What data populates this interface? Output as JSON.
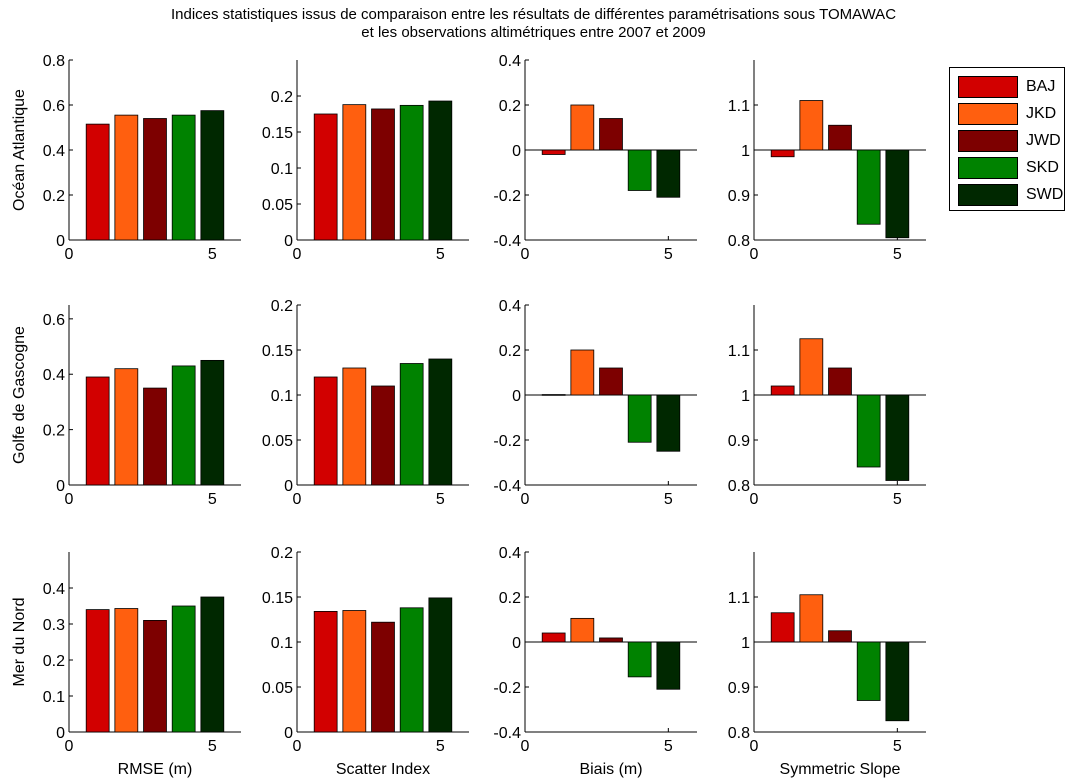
{
  "figure": {
    "title_line1": "Indices statistiques issus de comparaison entre les résultats de différentes paramétrisations sous TOMAWAC",
    "title_line2": "et les observations altimétriques entre 2007 et 2009"
  },
  "legend": {
    "items": [
      {
        "label": "BAJ",
        "color": "#d20000"
      },
      {
        "label": "JKD",
        "color": "#ff5f0f"
      },
      {
        "label": "JWD",
        "color": "#7d0000"
      },
      {
        "label": "SKD",
        "color": "#008200"
      },
      {
        "label": "SWD",
        "color": "#002800"
      }
    ]
  },
  "chart_data": [
    {
      "type": "bar",
      "row": "Océan Atlantique",
      "column": "RMSE (m)",
      "x": [
        1,
        2,
        3,
        4,
        5
      ],
      "values": [
        0.515,
        0.555,
        0.54,
        0.555,
        0.575
      ],
      "xlim": [
        0,
        6
      ],
      "ylim": [
        0,
        0.8
      ],
      "yticks": [
        0,
        0.2,
        0.4,
        0.6,
        0.8
      ],
      "ytick_labels": [
        "0",
        "0.2",
        "0.4",
        "0.6",
        "0.8"
      ],
      "xticks": [
        0,
        5
      ],
      "baseline": 0,
      "ylabel": "Océan Atlantique",
      "xlabel": ""
    },
    {
      "type": "bar",
      "row": "Océan Atlantique",
      "column": "Scatter Index",
      "x": [
        1,
        2,
        3,
        4,
        5
      ],
      "values": [
        0.175,
        0.188,
        0.182,
        0.187,
        0.193
      ],
      "xlim": [
        0,
        6
      ],
      "ylim": [
        0,
        0.25
      ],
      "yticks": [
        0,
        0.05,
        0.1,
        0.15,
        0.2
      ],
      "ytick_labels": [
        "0",
        "0.05",
        "0.1",
        "0.15",
        "0.2"
      ],
      "xticks": [
        0,
        5
      ],
      "baseline": 0,
      "ylabel": "",
      "xlabel": ""
    },
    {
      "type": "bar",
      "row": "Océan Atlantique",
      "column": "Biais (m)",
      "x": [
        1,
        2,
        3,
        4,
        5
      ],
      "values": [
        -0.02,
        0.2,
        0.14,
        -0.18,
        -0.21
      ],
      "xlim": [
        0,
        6
      ],
      "ylim": [
        -0.4,
        0.4
      ],
      "yticks": [
        -0.4,
        -0.2,
        0,
        0.2,
        0.4
      ],
      "ytick_labels": [
        "-0.4",
        "-0.2",
        "0",
        "0.2",
        "0.4"
      ],
      "xticks": [
        0,
        5
      ],
      "baseline": 0,
      "ylabel": "",
      "xlabel": ""
    },
    {
      "type": "bar",
      "row": "Océan Atlantique",
      "column": "Symmetric Slope",
      "x": [
        1,
        2,
        3,
        4,
        5
      ],
      "values": [
        0.985,
        1.11,
        1.055,
        0.835,
        0.805
      ],
      "xlim": [
        0,
        6
      ],
      "ylim": [
        0.8,
        1.2
      ],
      "yticks": [
        0.8,
        0.9,
        1,
        1.1
      ],
      "ytick_labels": [
        "0.8",
        "0.9",
        "1",
        "1.1"
      ],
      "xticks": [
        0,
        5
      ],
      "baseline": 1,
      "ylabel": "",
      "xlabel": ""
    },
    {
      "type": "bar",
      "row": "Golfe de Gascogne",
      "column": "RMSE (m)",
      "x": [
        1,
        2,
        3,
        4,
        5
      ],
      "values": [
        0.39,
        0.42,
        0.35,
        0.43,
        0.45
      ],
      "xlim": [
        0,
        6
      ],
      "ylim": [
        0,
        0.65
      ],
      "yticks": [
        0,
        0.2,
        0.4,
        0.6
      ],
      "ytick_labels": [
        "0",
        "0.2",
        "0.4",
        "0.6"
      ],
      "xticks": [
        0,
        5
      ],
      "baseline": 0,
      "ylabel": "Golfe de Gascogne",
      "xlabel": ""
    },
    {
      "type": "bar",
      "row": "Golfe de Gascogne",
      "column": "Scatter Index",
      "x": [
        1,
        2,
        3,
        4,
        5
      ],
      "values": [
        0.12,
        0.13,
        0.11,
        0.135,
        0.14
      ],
      "xlim": [
        0,
        6
      ],
      "ylim": [
        0,
        0.2
      ],
      "yticks": [
        0,
        0.05,
        0.1,
        0.15,
        0.2
      ],
      "ytick_labels": [
        "0",
        "0.05",
        "0.1",
        "0.15",
        "0.2"
      ],
      "xticks": [
        0,
        5
      ],
      "baseline": 0,
      "ylabel": "",
      "xlabel": ""
    },
    {
      "type": "bar",
      "row": "Golfe de Gascogne",
      "column": "Biais (m)",
      "x": [
        1,
        2,
        3,
        4,
        5
      ],
      "values": [
        0.002,
        0.2,
        0.12,
        -0.21,
        -0.25
      ],
      "xlim": [
        0,
        6
      ],
      "ylim": [
        -0.4,
        0.4
      ],
      "yticks": [
        -0.4,
        -0.2,
        0,
        0.2,
        0.4
      ],
      "ytick_labels": [
        "-0.4",
        "-0.2",
        "0",
        "0.2",
        "0.4"
      ],
      "xticks": [
        0,
        5
      ],
      "baseline": 0,
      "ylabel": "",
      "xlabel": ""
    },
    {
      "type": "bar",
      "row": "Golfe de Gascogne",
      "column": "Symmetric Slope",
      "x": [
        1,
        2,
        3,
        4,
        5
      ],
      "values": [
        1.02,
        1.125,
        1.06,
        0.84,
        0.81
      ],
      "xlim": [
        0,
        6
      ],
      "ylim": [
        0.8,
        1.2
      ],
      "yticks": [
        0.8,
        0.9,
        1,
        1.1
      ],
      "ytick_labels": [
        "0.8",
        "0.9",
        "1",
        "1.1"
      ],
      "xticks": [
        0,
        5
      ],
      "baseline": 1,
      "ylabel": "",
      "xlabel": ""
    },
    {
      "type": "bar",
      "row": "Mer du Nord",
      "column": "RMSE (m)",
      "x": [
        1,
        2,
        3,
        4,
        5
      ],
      "values": [
        0.34,
        0.343,
        0.31,
        0.35,
        0.375
      ],
      "xlim": [
        0,
        6
      ],
      "ylim": [
        0,
        0.5
      ],
      "yticks": [
        0,
        0.1,
        0.2,
        0.3,
        0.4
      ],
      "ytick_labels": [
        "0",
        "0.1",
        "0.2",
        "0.3",
        "0.4"
      ],
      "xticks": [
        0,
        5
      ],
      "baseline": 0,
      "ylabel": "Mer du Nord",
      "xlabel": "RMSE (m)"
    },
    {
      "type": "bar",
      "row": "Mer du Nord",
      "column": "Scatter Index",
      "x": [
        1,
        2,
        3,
        4,
        5
      ],
      "values": [
        0.134,
        0.135,
        0.122,
        0.138,
        0.149
      ],
      "xlim": [
        0,
        6
      ],
      "ylim": [
        0,
        0.2
      ],
      "yticks": [
        0,
        0.05,
        0.1,
        0.15,
        0.2
      ],
      "ytick_labels": [
        "0",
        "0.05",
        "0.1",
        "0.15",
        "0.2"
      ],
      "xticks": [
        0,
        5
      ],
      "baseline": 0,
      "ylabel": "",
      "xlabel": "Scatter Index"
    },
    {
      "type": "bar",
      "row": "Mer du Nord",
      "column": "Biais (m)",
      "x": [
        1,
        2,
        3,
        4,
        5
      ],
      "values": [
        0.04,
        0.105,
        0.018,
        -0.155,
        -0.21
      ],
      "xlim": [
        0,
        6
      ],
      "ylim": [
        -0.4,
        0.4
      ],
      "yticks": [
        -0.4,
        -0.2,
        0,
        0.2,
        0.4
      ],
      "ytick_labels": [
        "-0.4",
        "-0.2",
        "0",
        "0.2",
        "0.4"
      ],
      "xticks": [
        0,
        5
      ],
      "baseline": 0,
      "ylabel": "",
      "xlabel": "Biais (m)"
    },
    {
      "type": "bar",
      "row": "Mer du Nord",
      "column": "Symmetric Slope",
      "x": [
        1,
        2,
        3,
        4,
        5
      ],
      "values": [
        1.065,
        1.105,
        1.025,
        0.87,
        0.825
      ],
      "xlim": [
        0,
        6
      ],
      "ylim": [
        0.8,
        1.2
      ],
      "yticks": [
        0.8,
        0.9,
        1,
        1.1
      ],
      "ytick_labels": [
        "0.8",
        "0.9",
        "1",
        "1.1"
      ],
      "xticks": [
        0,
        5
      ],
      "baseline": 1,
      "ylabel": "",
      "xlabel": "Symmetric Slope"
    }
  ]
}
